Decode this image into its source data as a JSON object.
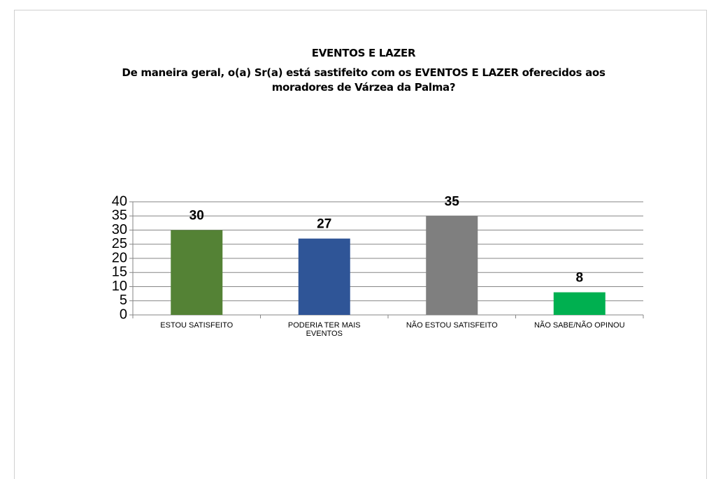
{
  "chart_data": {
    "type": "bar",
    "title": "EVENTOS E LAZER",
    "subtitle": "De maneira geral, o(a) Sr(a) está sastifeito com os EVENTOS E LAZER oferecidos aos moradores de Várzea da Palma?",
    "categories": [
      "ESTOU SATISFEITO",
      "PODERIA TER MAIS EVENTOS",
      "NÃO ESTOU SATISFEITO",
      "NÃO SABE/NÃO OPINOU"
    ],
    "values": [
      30,
      27,
      35,
      8
    ],
    "colors": [
      "#548235",
      "#2f5597",
      "#7f7f7f",
      "#00b050"
    ],
    "ylim": [
      0,
      40
    ],
    "yticks": [
      0,
      5,
      10,
      15,
      20,
      25,
      30,
      35,
      40
    ],
    "grid": true
  }
}
